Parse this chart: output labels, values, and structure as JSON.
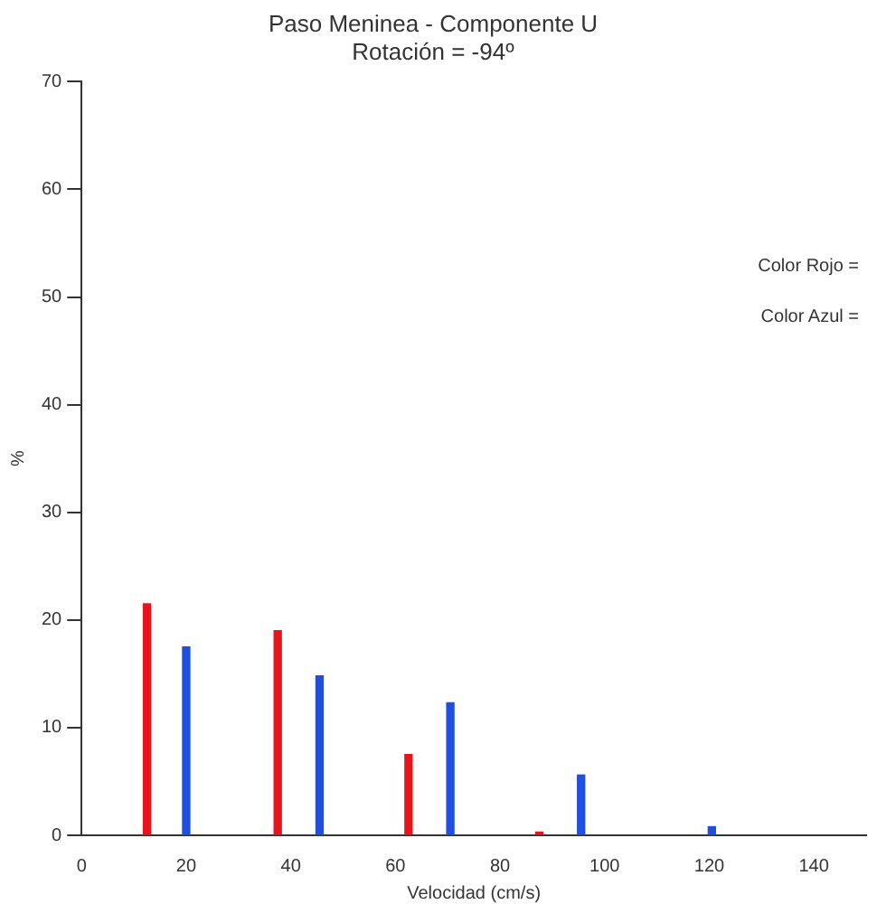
{
  "chart_data": {
    "type": "bar",
    "title": "Paso Meninea - Componente U",
    "subtitle": "Rotación = -94º",
    "xlabel": "Velocidad (cm/s)",
    "ylabel": "%",
    "series": [
      {
        "color": "#e8141c",
        "x": [
          12.5,
          37.5,
          62.5,
          87.5
        ],
        "values": [
          21.5,
          19,
          7.5,
          0.3
        ]
      },
      {
        "color": "#1e4fe0",
        "x": [
          20,
          45.5,
          70.5,
          95.5,
          120.5
        ],
        "values": [
          17.5,
          14.8,
          12.3,
          5.6,
          0.8
        ]
      }
    ],
    "xlim": [
      0,
      150
    ],
    "xticks": [
      0,
      20,
      40,
      60,
      80,
      100,
      120,
      140
    ],
    "ylim": [
      0,
      70
    ],
    "yticks": [
      0,
      10,
      20,
      30,
      40,
      50,
      60,
      70
    ],
    "annotations": [
      "Color Rojo =",
      "Color Azul ="
    ],
    "grid": false,
    "legend": false
  }
}
